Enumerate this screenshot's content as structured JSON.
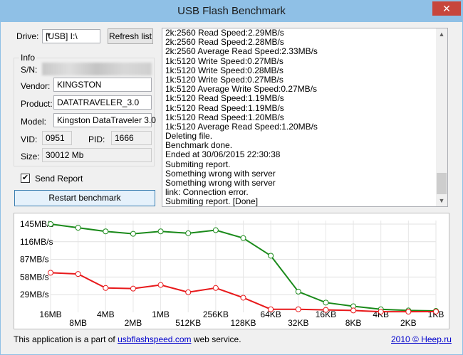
{
  "window": {
    "title": "USB Flash Benchmark",
    "close_label": "✕"
  },
  "drive": {
    "label": "Drive:",
    "value": "[USB] I:\\",
    "refresh_label": "Refresh list"
  },
  "info": {
    "group_title": "Info",
    "sn_label": "S/N:",
    "vendor_label": "Vendor:",
    "vendor": "KINGSTON",
    "product_label": "Product:",
    "product": "DATATRAVELER_3.0",
    "model_label": "Model:",
    "model": "Kingston DataTraveler 3.0",
    "vid_label": "VID:",
    "vid": "0951",
    "pid_label": "PID:",
    "pid": "1666",
    "size_label": "Size:",
    "size": "30012 Mb"
  },
  "send_report": {
    "label": "Send Report",
    "checked": true
  },
  "restart_label": "Restart benchmark",
  "log": [
    "2k:2560 Read Speed:2.29MB/s",
    "2k:2560 Read Speed:2.28MB/s",
    "2k:2560 Average Read Speed:2.33MB/s",
    "1k:5120 Write Speed:0.27MB/s",
    "1k:5120 Write Speed:0.28MB/s",
    "1k:5120 Write Speed:0.27MB/s",
    "1k:5120 Average Write Speed:0.27MB/s",
    "1k:5120 Read Speed:1.19MB/s",
    "1k:5120 Read Speed:1.19MB/s",
    "1k:5120 Read Speed:1.20MB/s",
    "1k:5120 Average Read Speed:1.20MB/s",
    "Deleting file.",
    "Benchmark done.",
    "Ended at 30/06/2015 22:30:38",
    "Submiting report.",
    "Something wrong with server",
    "Something wrong with server",
    "link: Connection error.",
    "Submiting report. [Done]"
  ],
  "footer": {
    "text_before": "This application is a part of",
    "link": "usbflashspeed.com",
    "text_after": "web service.",
    "copyright": "2010 © Heep.ru"
  },
  "chart_data": {
    "type": "line",
    "categories": [
      "16MB",
      "8MB",
      "4MB",
      "2MB",
      "1MB",
      "512KB",
      "256KB",
      "128KB",
      "64KB",
      "32KB",
      "16KB",
      "8KB",
      "4KB",
      "2KB",
      "1KB"
    ],
    "y_ticks": [
      "145MB/s",
      "116MB/s",
      "87MB/s",
      "58MB/s",
      "29MB/s"
    ],
    "y_tick_values": [
      145,
      116,
      87,
      58,
      29
    ],
    "ylim": [
      0,
      145
    ],
    "series": [
      {
        "color": "#1a8a1a",
        "values": [
          145,
          139,
          133,
          129,
          133,
          130,
          135,
          122,
          93,
          34,
          16,
          10,
          5,
          3,
          2.3
        ]
      },
      {
        "color": "#e8191b",
        "values": [
          65,
          63,
          40,
          39,
          45,
          33,
          40,
          24,
          5,
          5,
          4,
          3,
          1,
          1,
          1.2
        ]
      }
    ],
    "grid": true,
    "legend": "none"
  }
}
